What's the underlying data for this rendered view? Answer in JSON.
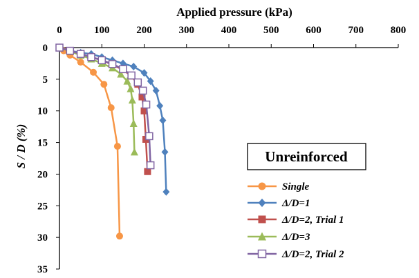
{
  "chart_data": {
    "type": "line",
    "xlabel": "Applied pressure (kPa)",
    "ylabel": "S / D (%)",
    "xlim": [
      0,
      800
    ],
    "ylim": [
      0,
      35
    ],
    "x_ticks": [
      0,
      100,
      200,
      300,
      400,
      500,
      600,
      700,
      800
    ],
    "y_ticks": [
      0,
      5,
      10,
      15,
      20,
      25,
      30,
      35
    ],
    "x_axis_position": "top",
    "y_axis_inverted": true,
    "grid": false,
    "legend_title": "Unreinforced",
    "legend_position": "bottom-right",
    "series": [
      {
        "name": "Single",
        "color": "#f79646",
        "marker": "circle",
        "points": [
          [
            0,
            0
          ],
          [
            10,
            0.5
          ],
          [
            25,
            1.2
          ],
          [
            50,
            2.3
          ],
          [
            80,
            3.9
          ],
          [
            105,
            5.8
          ],
          [
            122,
            9.5
          ],
          [
            137,
            15.6
          ],
          [
            142,
            29.8
          ]
        ]
      },
      {
        "name": "Δ/D=1",
        "color": "#4f81bd",
        "marker": "diamond",
        "points": [
          [
            0,
            0
          ],
          [
            25,
            0.5
          ],
          [
            50,
            0.8
          ],
          [
            75,
            1.0
          ],
          [
            100,
            1.5
          ],
          [
            125,
            2.0
          ],
          [
            150,
            2.5
          ],
          [
            175,
            3.0
          ],
          [
            200,
            4.0
          ],
          [
            215,
            5.3
          ],
          [
            228,
            6.8
          ],
          [
            237,
            9.2
          ],
          [
            244,
            11.5
          ],
          [
            249,
            16.5
          ],
          [
            252,
            22.8
          ]
        ]
      },
      {
        "name": "Δ/D=2, Trial 1",
        "color": "#c0504d",
        "marker": "square",
        "points": [
          [
            0,
            0
          ],
          [
            25,
            0.5
          ],
          [
            50,
            1.0
          ],
          [
            75,
            1.5
          ],
          [
            100,
            2.0
          ],
          [
            125,
            2.7
          ],
          [
            150,
            3.5
          ],
          [
            170,
            4.5
          ],
          [
            185,
            5.8
          ],
          [
            195,
            7.8
          ],
          [
            200,
            10.0
          ],
          [
            204,
            14.5
          ],
          [
            208,
            19.6
          ]
        ]
      },
      {
        "name": "Δ/D=3",
        "color": "#9bbb59",
        "marker": "triangle",
        "points": [
          [
            0,
            0
          ],
          [
            25,
            0.6
          ],
          [
            50,
            1.2
          ],
          [
            75,
            1.8
          ],
          [
            100,
            2.5
          ],
          [
            125,
            3.2
          ],
          [
            145,
            4.2
          ],
          [
            160,
            5.3
          ],
          [
            168,
            6.5
          ],
          [
            172,
            8.3
          ],
          [
            175,
            12.0
          ],
          [
            177,
            16.5
          ]
        ]
      },
      {
        "name": "Δ/D=2, Trial 2",
        "color": "#8064a2",
        "marker": "open-square",
        "points": [
          [
            0,
            0
          ],
          [
            25,
            0.5
          ],
          [
            50,
            1.0
          ],
          [
            75,
            1.5
          ],
          [
            100,
            2.0
          ],
          [
            125,
            2.6
          ],
          [
            150,
            3.4
          ],
          [
            170,
            4.4
          ],
          [
            185,
            5.5
          ],
          [
            197,
            6.8
          ],
          [
            205,
            9.0
          ],
          [
            212,
            14.0
          ],
          [
            215,
            18.6
          ]
        ]
      }
    ]
  }
}
